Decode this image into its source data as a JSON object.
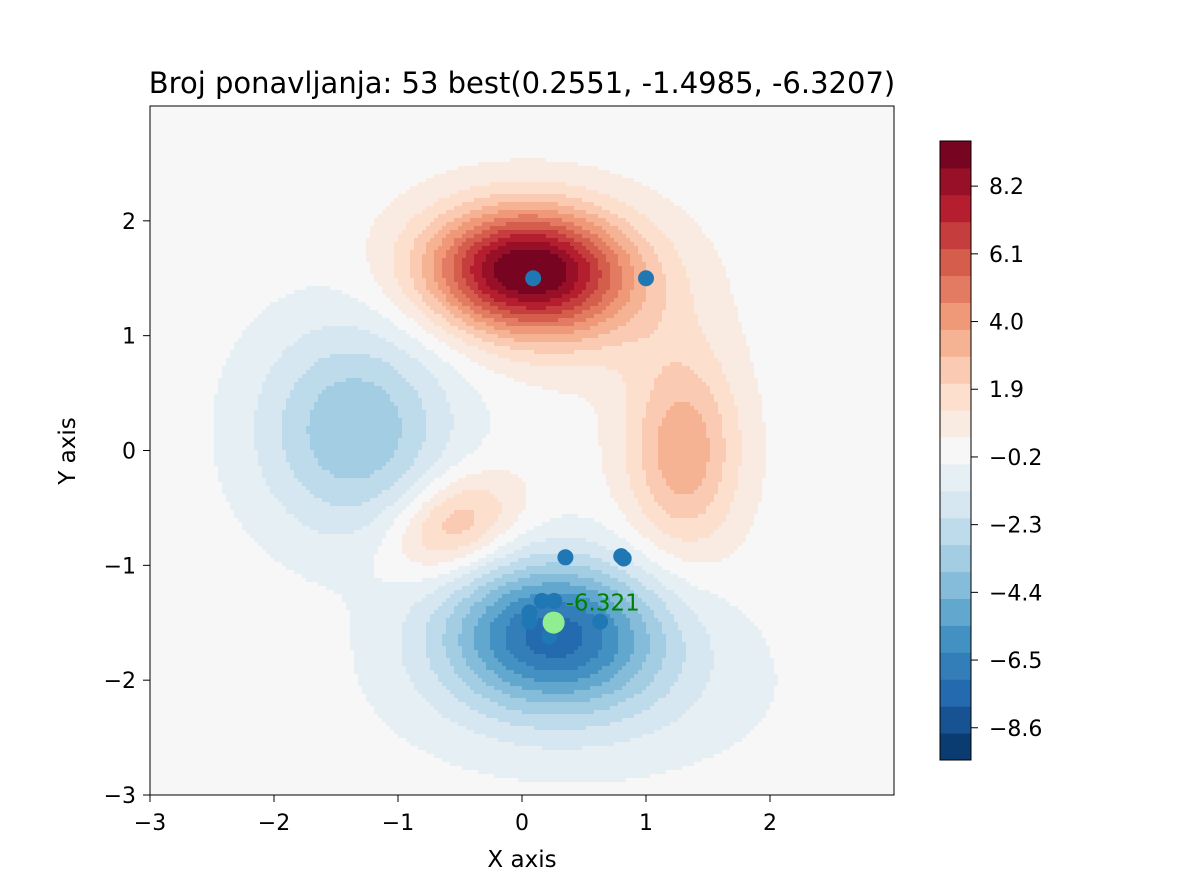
{
  "chart_data": {
    "type": "contour",
    "title": "Broj ponavljanja: 53 best(0.2551, -1.4985, -6.3207)",
    "xlabel": "X axis",
    "ylabel": "Y axis",
    "xlim": [
      -3,
      3
    ],
    "ylim": [
      -3,
      3
    ],
    "x_ticks": [
      -3,
      -2,
      -1,
      0,
      1,
      2
    ],
    "y_ticks": [
      -3,
      -2,
      -1,
      0,
      1,
      2
    ],
    "x_tick_labels": [
      "−3",
      "−2",
      "−1",
      "0",
      "1",
      "2"
    ],
    "y_tick_labels": [
      "−3",
      "−2",
      "−1",
      "0",
      "1",
      "2"
    ],
    "colormap": "RdBu_r",
    "colorbar": {
      "vmin": -9.6,
      "vmax": 9.6,
      "levels": 23,
      "tick_values": [
        8.2,
        6.1,
        4.0,
        1.9,
        -0.2,
        -2.3,
        -4.4,
        -6.5,
        -8.6
      ],
      "tick_labels": [
        "8.2",
        "6.1",
        "4.0",
        "1.9",
        "−0.2",
        "−2.3",
        "−4.4",
        "−6.5",
        "−8.6"
      ]
    },
    "points": [
      {
        "x": 0.09,
        "y": 1.5
      },
      {
        "x": 1.0,
        "y": 1.5
      },
      {
        "x": 0.35,
        "y": -0.93
      },
      {
        "x": 0.8,
        "y": -0.92
      },
      {
        "x": 0.82,
        "y": -0.94
      },
      {
        "x": 0.16,
        "y": -1.31
      },
      {
        "x": 0.26,
        "y": -1.31
      },
      {
        "x": 0.06,
        "y": -1.41
      },
      {
        "x": 0.06,
        "y": -1.49
      },
      {
        "x": 0.63,
        "y": -1.49
      },
      {
        "x": 0.22,
        "y": -1.62
      }
    ],
    "point_color": "#1f77b4",
    "best_point": {
      "x": 0.2551,
      "y": -1.4985,
      "z": -6.3207,
      "label": "-6.321",
      "color": "#90ee90"
    }
  }
}
